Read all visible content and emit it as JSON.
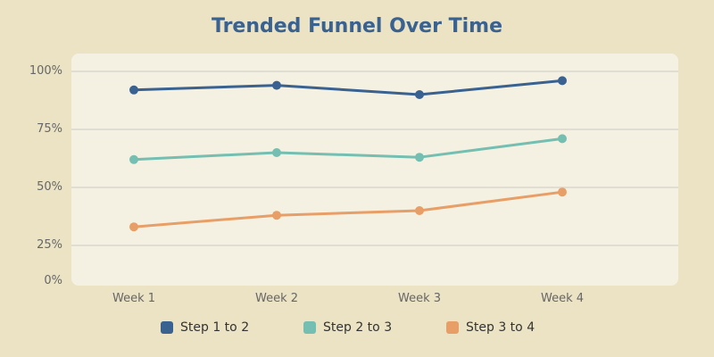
{
  "chart_data": {
    "type": "line",
    "title": "Trended Funnel Over Time",
    "xlabel": "",
    "ylabel": "",
    "categories": [
      "Week 1",
      "Week 2",
      "Week 3",
      "Week 4"
    ],
    "y_ticks": [
      "0%",
      "25%",
      "50%",
      "75%",
      "100%"
    ],
    "ylim": [
      0,
      100
    ],
    "grid": true,
    "legend_position": "bottom",
    "series": [
      {
        "name": "Step 1 to 2",
        "color": "#3a6291",
        "values": [
          92,
          94,
          90,
          96
        ]
      },
      {
        "name": "Step 2 to 3",
        "color": "#74bfb1",
        "values": [
          62,
          65,
          63,
          71
        ]
      },
      {
        "name": "Step 3 to 4",
        "color": "#e89e67",
        "values": [
          33,
          38,
          40,
          48
        ]
      }
    ]
  },
  "colors": {
    "background": "#ebe3c4",
    "plot_background": "#f5f1e2",
    "gridline": "#e0ddd2",
    "title": "#3a6291",
    "tick_text": "#666666"
  }
}
